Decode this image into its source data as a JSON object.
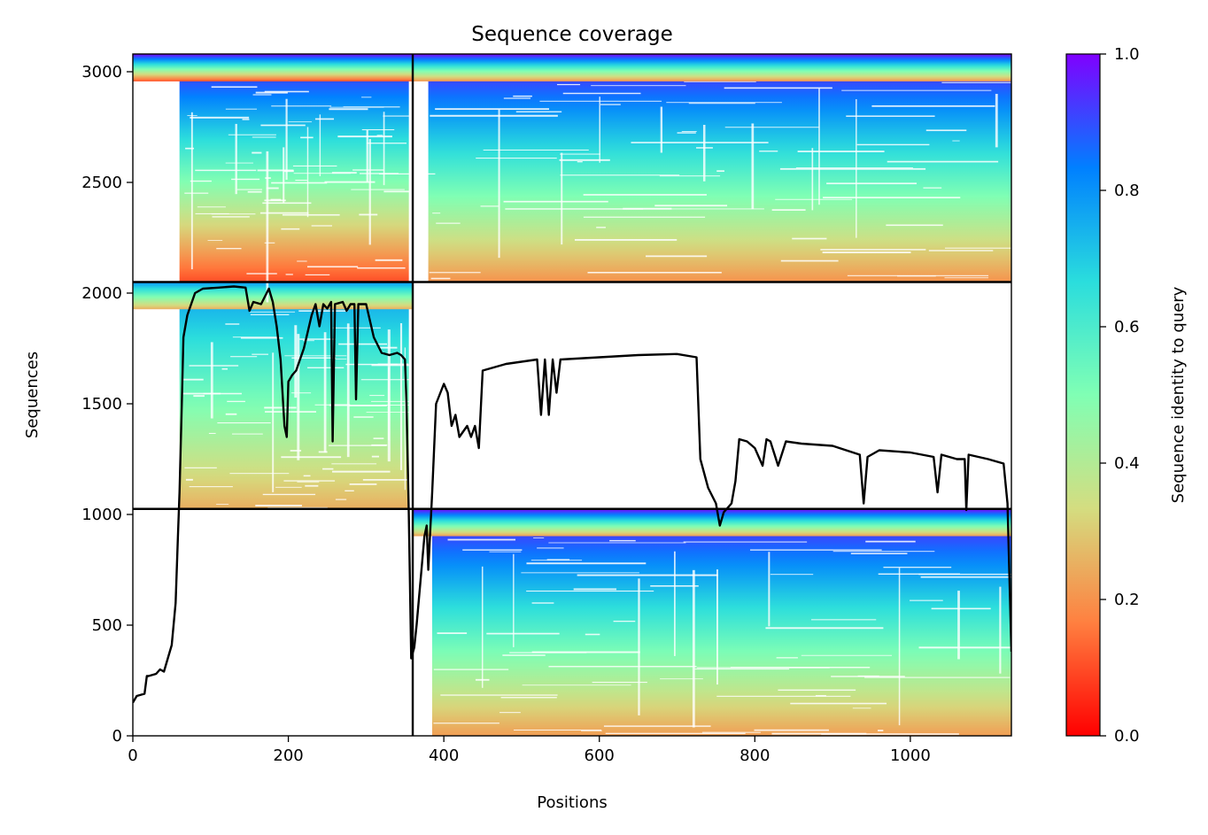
{
  "chart_data": {
    "type": "heatmap",
    "title": "Sequence coverage",
    "xlabel": "Positions",
    "ylabel": "Sequences",
    "xlim": [
      0,
      1130
    ],
    "ylim": [
      0,
      3080
    ],
    "xticks": [
      0,
      200,
      400,
      600,
      800,
      1000
    ],
    "yticks": [
      0,
      500,
      1000,
      1500,
      2000,
      2500,
      3000
    ],
    "colorbar": {
      "label": "Sequence identity to query",
      "range": [
        0,
        1
      ],
      "ticks": [
        "0.0",
        "0.2",
        "0.4",
        "0.6",
        "0.8",
        "1.0"
      ],
      "colormap": "rainbow",
      "stops": [
        "#ff0000",
        "#ff8040",
        "#d4dd80",
        "#80ffb4",
        "#2adddd",
        "#0080ff",
        "#8000ff"
      ]
    },
    "blocks": [
      {
        "x": [
          0,
          360
        ],
        "y": [
          2050,
          3080
        ],
        "x_core": [
          60,
          355
        ],
        "identity_top": 1.0,
        "identity_bottom": 0.1
      },
      {
        "x": [
          360,
          1130
        ],
        "y": [
          2050,
          3080
        ],
        "x_core": [
          380,
          1130
        ],
        "identity_top": 1.0,
        "identity_bottom": 0.2
      },
      {
        "x": [
          0,
          360
        ],
        "y": [
          1025,
          2050
        ],
        "x_core": [
          60,
          355
        ],
        "identity_top": 0.8,
        "identity_bottom": 0.25
      },
      {
        "x": [
          360,
          1130
        ],
        "y": [
          0,
          1025
        ],
        "x_core": [
          385,
          1130
        ],
        "identity_top": 1.0,
        "identity_bottom": 0.22
      }
    ],
    "dividers": {
      "x": [
        360
      ],
      "y": [
        1025,
        2050
      ]
    },
    "coverage_line": {
      "color": "#000000",
      "x": [
        0,
        5,
        15,
        18,
        20,
        30,
        35,
        40,
        45,
        50,
        55,
        58,
        60,
        63,
        65,
        70,
        80,
        90,
        110,
        130,
        145,
        150,
        155,
        165,
        175,
        180,
        185,
        190,
        195,
        198,
        200,
        205,
        210,
        220,
        230,
        235,
        240,
        245,
        250,
        255,
        257,
        260,
        270,
        275,
        280,
        285,
        287,
        290,
        300,
        310,
        320,
        330,
        340,
        345,
        350,
        352,
        355,
        358,
        362,
        365,
        370,
        375,
        378,
        380,
        385,
        390,
        400,
        405,
        410,
        415,
        420,
        430,
        435,
        440,
        445,
        450,
        460,
        480,
        500,
        520,
        525,
        530,
        535,
        540,
        545,
        550,
        600,
        650,
        700,
        725,
        730,
        740,
        750,
        755,
        760,
        770,
        775,
        780,
        790,
        800,
        810,
        815,
        820,
        830,
        840,
        860,
        900,
        935,
        940,
        945,
        960,
        1000,
        1030,
        1035,
        1040,
        1060,
        1070,
        1072,
        1075,
        1100,
        1110,
        1120,
        1125,
        1130
      ],
      "y": [
        150,
        180,
        190,
        270,
        270,
        280,
        300,
        290,
        350,
        410,
        600,
        900,
        1100,
        1500,
        1800,
        1900,
        2000,
        2020,
        2025,
        2030,
        2025,
        1920,
        1960,
        1950,
        2020,
        1960,
        1850,
        1700,
        1400,
        1350,
        1600,
        1630,
        1650,
        1750,
        1900,
        1950,
        1850,
        1950,
        1930,
        1960,
        1330,
        1950,
        1960,
        1920,
        1950,
        1950,
        1520,
        1950,
        1950,
        1800,
        1730,
        1720,
        1730,
        1720,
        1700,
        1500,
        1000,
        350,
        400,
        500,
        700,
        900,
        950,
        750,
        1100,
        1500,
        1590,
        1550,
        1400,
        1450,
        1350,
        1400,
        1350,
        1400,
        1300,
        1650,
        1660,
        1680,
        1690,
        1700,
        1450,
        1700,
        1450,
        1700,
        1550,
        1700,
        1710,
        1720,
        1725,
        1710,
        1250,
        1120,
        1050,
        950,
        1010,
        1050,
        1150,
        1340,
        1330,
        1300,
        1220,
        1340,
        1330,
        1220,
        1330,
        1320,
        1310,
        1270,
        1050,
        1260,
        1290,
        1280,
        1260,
        1100,
        1270,
        1250,
        1250,
        1020,
        1270,
        1250,
        1240,
        1230,
        1050,
        380
      ]
    }
  }
}
